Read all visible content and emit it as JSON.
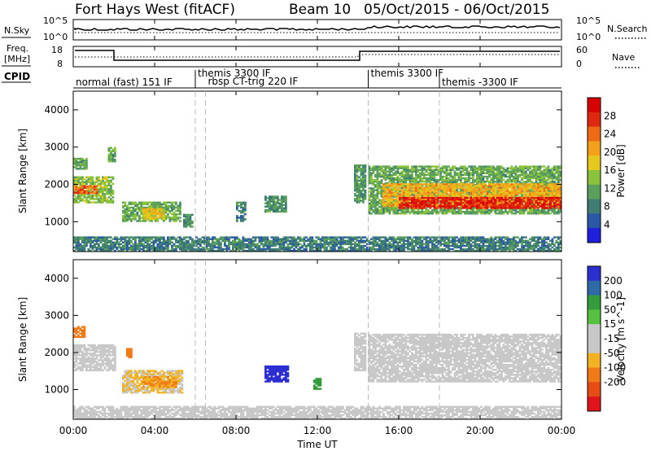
{
  "header": {
    "radar": "Fort Hays West (fitACF)",
    "beam": "Beam 10",
    "dates": "05/Oct/2015 - 06/Oct/2015"
  },
  "strip_panels": {
    "nsky_label": "N.Sky",
    "nsky_top": "10^5",
    "nsky_bottom": "10^0",
    "nsearch_top": "10^5",
    "nsearch_bottom": "10^0",
    "nsearch_label": "N.Search",
    "freq_label": "Freq.",
    "freq_unit": "[MHz]",
    "freq_top": "18",
    "freq_bottom": "8",
    "nave_top": "60",
    "nave_bottom": "0",
    "nave_label": "Nave",
    "cpid_label": "CPID"
  },
  "cpid_segments": [
    {
      "label": "normal (fast) 151 IF",
      "start_h": 0.0
    },
    {
      "label": "themis 3300 IF",
      "start_h": 6.0
    },
    {
      "label": "rbsp CT-trig 220 IF",
      "start_h": 6.5
    },
    {
      "label": "themis 3300 IF",
      "start_h": 14.5
    },
    {
      "label": "themis -3300 IF",
      "start_h": 18.0
    }
  ],
  "colors": {
    "power": [
      "#1f20dc",
      "#2b58a6",
      "#3f7d74",
      "#5aa05c",
      "#8ac23c",
      "#e5c81d",
      "#f3a11a",
      "#ef6a14",
      "#e02710",
      "#d80000"
    ],
    "velocity": [
      "#2b2fd0",
      "#2f6aa8",
      "#339c3b",
      "#56c040",
      "#c8c8c8",
      "#c8c8c8",
      "#f2b221",
      "#f07a16",
      "#e64c14",
      "#e0141a"
    ]
  },
  "chart_data": [
    {
      "type": "heatmap",
      "name": "power",
      "ylabel": "Slant Range [km]",
      "yticks": [
        1000,
        2000,
        3000,
        4000
      ],
      "ylim": [
        200,
        4500
      ],
      "xlim": [
        0,
        24
      ],
      "colorbar_label": "Power [dB]",
      "colorbar_ticks": [
        4,
        8,
        12,
        16,
        20,
        24,
        28
      ],
      "colorbar_range": [
        0,
        32
      ],
      "regions": [
        {
          "t0": 0.0,
          "t1": 2.0,
          "r0": 1500,
          "r1": 2200,
          "level": 14
        },
        {
          "t0": 0.0,
          "t1": 1.2,
          "r0": 1750,
          "r1": 1950,
          "level": 24
        },
        {
          "t0": 0.0,
          "t1": 0.7,
          "r0": 2400,
          "r1": 2700,
          "level": 12
        },
        {
          "t0": 1.7,
          "t1": 2.1,
          "r0": 2600,
          "r1": 3000,
          "level": 12
        },
        {
          "t0": 2.4,
          "t1": 5.2,
          "r0": 1000,
          "r1": 1500,
          "level": 12
        },
        {
          "t0": 3.4,
          "t1": 4.4,
          "r0": 1050,
          "r1": 1350,
          "level": 18
        },
        {
          "t0": 5.4,
          "t1": 5.8,
          "r0": 850,
          "r1": 1200,
          "level": 10
        },
        {
          "t0": 9.4,
          "t1": 10.4,
          "r0": 1250,
          "r1": 1700,
          "level": 10
        },
        {
          "t0": 8.0,
          "t1": 8.4,
          "r0": 1000,
          "r1": 1500,
          "level": 8
        },
        {
          "t0": 13.8,
          "t1": 14.3,
          "r0": 1500,
          "r1": 2500,
          "level": 10
        },
        {
          "t0": 14.5,
          "t1": 24.0,
          "r0": 1200,
          "r1": 2500,
          "level": 12
        },
        {
          "t0": 15.2,
          "t1": 24.0,
          "r0": 1400,
          "r1": 2000,
          "level": 20
        },
        {
          "t0": 16.0,
          "t1": 24.0,
          "r0": 1350,
          "r1": 1650,
          "level": 28
        },
        {
          "t0": 0.0,
          "t1": 24.0,
          "r0": 200,
          "r1": 600,
          "level": 8
        }
      ]
    },
    {
      "type": "heatmap",
      "name": "velocity",
      "ylabel": "Slant Range [km]",
      "yticks": [
        1000,
        2000,
        3000,
        4000
      ],
      "ylim": [
        200,
        4500
      ],
      "xlim": [
        0,
        24
      ],
      "colorbar_label": "Velocity [m s^-1]",
      "colorbar_ticks": [
        200,
        100,
        50,
        15,
        -15,
        -50,
        -100,
        -200
      ],
      "regions": [
        {
          "t0": 0.0,
          "t1": 2.1,
          "r0": 1500,
          "r1": 2200,
          "level": 0
        },
        {
          "t0": 0.0,
          "t1": 0.6,
          "r0": 2400,
          "r1": 2700,
          "level": -150
        },
        {
          "t0": 2.4,
          "t1": 5.3,
          "r0": 900,
          "r1": 1500,
          "level": -50
        },
        {
          "t0": 3.4,
          "t1": 5.0,
          "r0": 1050,
          "r1": 1350,
          "level": -100
        },
        {
          "t0": 2.6,
          "t1": 2.9,
          "r0": 1850,
          "r1": 2100,
          "level": -150
        },
        {
          "t0": 9.4,
          "t1": 10.5,
          "r0": 1200,
          "r1": 1650,
          "level": 250
        },
        {
          "t0": 11.8,
          "t1": 12.2,
          "r0": 1000,
          "r1": 1300,
          "level": 60
        },
        {
          "t0": 13.8,
          "t1": 14.3,
          "r0": 1500,
          "r1": 2500,
          "level": 0
        },
        {
          "t0": 14.5,
          "t1": 24.0,
          "r0": 1200,
          "r1": 2500,
          "level": 0
        },
        {
          "t0": 0.0,
          "t1": 24.0,
          "r0": 200,
          "r1": 550,
          "level": -30
        }
      ]
    }
  ],
  "time_axis": {
    "ticks": [
      "00:00",
      "04:00",
      "08:00",
      "12:00",
      "16:00",
      "20:00",
      "00:00"
    ],
    "label": "Time UT"
  }
}
